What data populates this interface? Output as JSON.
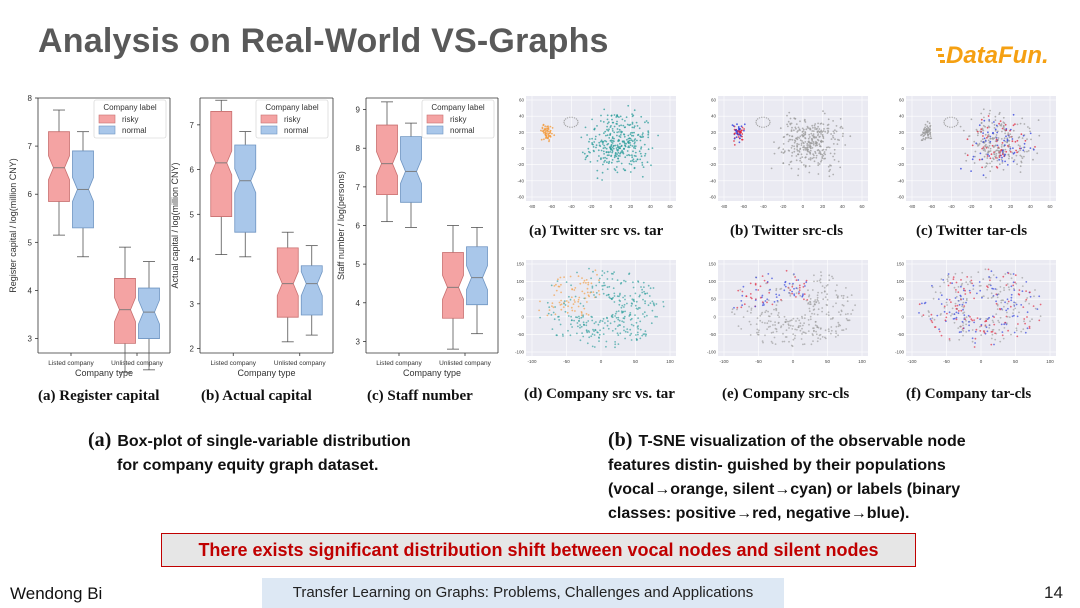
{
  "slide": {
    "title": "Analysis on Real-World VS-Graphs",
    "logo_text": "DataFun.",
    "author": "Wendong Bi",
    "footer": "Transfer Learning on Graphs: Problems, Challenges and Applications",
    "page_number": "14"
  },
  "boxplots": {
    "legend_title": "Company label",
    "legend_items": [
      "risky",
      "normal"
    ],
    "x_label": "Company type",
    "x_ticks": [
      "Listed company",
      "Unlisted company"
    ],
    "colors": {
      "risky": "#f4a3a3",
      "normal": "#a9c7ea",
      "risky_edge": "#c97070",
      "normal_edge": "#6f95c2"
    },
    "captions": [
      "(a) Register capital",
      "(b) Actual capital",
      "(c) Staff number"
    ]
  },
  "tsne": {
    "captions": [
      "(a) Twitter src vs. tar",
      "(b) Twitter src-cls",
      "(c) Twitter tar-cls",
      "(d) Company src vs. tar",
      "(e) Company src-cls",
      "(f) Company tar-cls"
    ],
    "colors": {
      "orange": "#f39a3c",
      "cyan": "#2a9c9a",
      "red": "#e0243a",
      "blue": "#2a3bdc",
      "gray": "#9a9a9a"
    },
    "twitter_x_ticks": [
      "-80",
      "-60",
      "-40",
      "-20",
      "0",
      "20",
      "40",
      "60"
    ],
    "twitter_y_ticks": [
      "60",
      "40",
      "20",
      "0",
      "-20",
      "-40",
      "-60"
    ],
    "company_x_ticks": [
      "-100",
      "-50",
      "0",
      "50",
      "100"
    ],
    "company_y_ticks": [
      "150",
      "100",
      "50",
      "0",
      "-50",
      "-100"
    ]
  },
  "descriptions": {
    "a_tag": "(a)",
    "a_line1": "Box-plot of single-variable distribution",
    "a_line2": "for company equity graph dataset.",
    "b_tag": "(b)",
    "b_line1": "T-SNE visualization of the observable node",
    "b_line2": "features distin- guished by their populations",
    "b_line3": "(vocal→orange, silent→cyan) or labels (binary",
    "b_line4": "classes: positive→red, negative→blue)."
  },
  "banner": "There exists significant distribution shift between vocal nodes and silent nodes",
  "chart_data": [
    {
      "type": "box",
      "title": "(a) Register capital",
      "ylabel": "Register capital / log(million CNY)",
      "xlabel": "Company type",
      "categories": [
        "Listed company",
        "Unlisted company"
      ],
      "ylim": [
        2.7,
        8
      ],
      "yticks": [
        3,
        4,
        5,
        6,
        7,
        8
      ],
      "series": [
        {
          "name": "risky",
          "boxes": [
            {
              "min": 5.15,
              "q1": 5.85,
              "median": 6.55,
              "q3": 7.3,
              "max": 7.75
            },
            {
              "min": 2.3,
              "q1": 2.9,
              "median": 3.6,
              "q3": 4.25,
              "max": 4.9
            }
          ]
        },
        {
          "name": "normal",
          "boxes": [
            {
              "min": 4.7,
              "q1": 5.3,
              "median": 6.1,
              "q3": 6.9,
              "max": 7.3
            },
            {
              "min": 2.35,
              "q1": 3.0,
              "median": 3.55,
              "q3": 4.05,
              "max": 4.6
            }
          ]
        }
      ]
    },
    {
      "type": "box",
      "title": "(b) Actual capital",
      "ylabel": "Actual capital / log(million CNY)",
      "xlabel": "Company type",
      "categories": [
        "Listed company",
        "Unlisted company"
      ],
      "ylim": [
        1.9,
        7.6
      ],
      "yticks": [
        2,
        3,
        4,
        5,
        6,
        7
      ],
      "series": [
        {
          "name": "risky",
          "boxes": [
            {
              "min": 4.1,
              "q1": 4.95,
              "median": 6.15,
              "q3": 7.3,
              "max": 7.55
            },
            {
              "min": 2.15,
              "q1": 2.7,
              "median": 3.45,
              "q3": 4.25,
              "max": 4.6
            }
          ]
        },
        {
          "name": "normal",
          "boxes": [
            {
              "min": 4.05,
              "q1": 4.6,
              "median": 5.75,
              "q3": 6.55,
              "max": 6.85
            },
            {
              "min": 2.3,
              "q1": 2.75,
              "median": 3.45,
              "q3": 3.85,
              "max": 4.3
            }
          ]
        }
      ]
    },
    {
      "type": "box",
      "title": "(c) Staff number",
      "ylabel": "Staff number / log(persons)",
      "xlabel": "Company type",
      "categories": [
        "Listed company",
        "Unlisted company"
      ],
      "ylim": [
        2.7,
        9.3
      ],
      "yticks": [
        3,
        4,
        5,
        6,
        7,
        8,
        9
      ],
      "series": [
        {
          "name": "risky",
          "boxes": [
            {
              "min": 6.1,
              "q1": 6.8,
              "median": 7.6,
              "q3": 8.6,
              "max": 9.2
            },
            {
              "min": 2.8,
              "q1": 3.6,
              "median": 4.4,
              "q3": 5.3,
              "max": 6.0
            }
          ]
        },
        {
          "name": "normal",
          "boxes": [
            {
              "min": 5.95,
              "q1": 6.6,
              "median": 7.4,
              "q3": 8.3,
              "max": 8.65
            },
            {
              "min": 3.2,
              "q1": 3.95,
              "median": 4.65,
              "q3": 5.45,
              "max": 5.95
            }
          ]
        }
      ]
    }
  ]
}
